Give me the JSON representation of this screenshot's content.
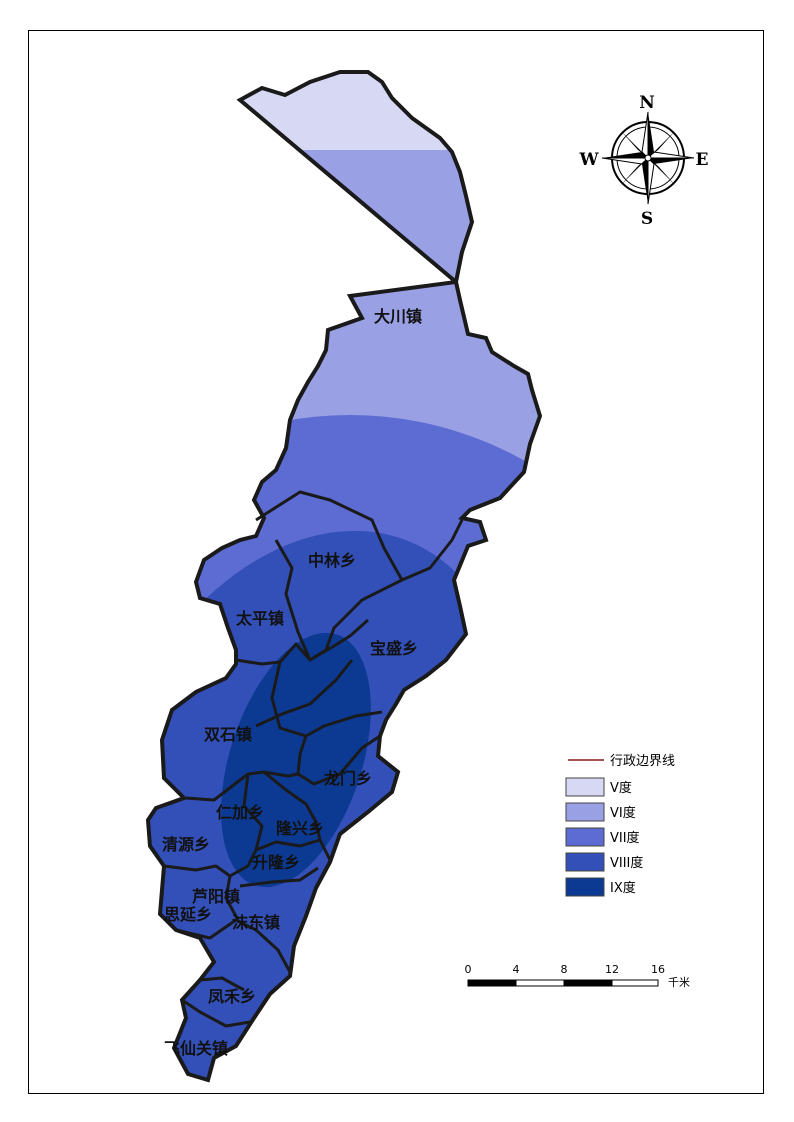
{
  "map": {
    "towns": [
      {
        "name": "大川镇"
      },
      {
        "name": "中林乡"
      },
      {
        "name": "太平镇"
      },
      {
        "name": "宝盛乡"
      },
      {
        "name": "双石镇"
      },
      {
        "name": "龙门乡"
      },
      {
        "name": "仁加乡"
      },
      {
        "name": "隆兴乡"
      },
      {
        "name": "清源乡"
      },
      {
        "name": "升隆乡"
      },
      {
        "name": "芦阳镇"
      },
      {
        "name": "思延乡"
      },
      {
        "name": "沫东镇"
      },
      {
        "name": "凤禾乡"
      },
      {
        "name": "飞仙关镇"
      }
    ]
  },
  "compass": {
    "north": "N",
    "south": "S",
    "east": "E",
    "west": "W"
  },
  "legend": {
    "boundary": {
      "label": "行政边界线",
      "color": "#8b1a1a"
    },
    "intensity": [
      {
        "label": "V度",
        "color": "#d6d8f4"
      },
      {
        "label": "VI度",
        "color": "#9aa0e4"
      },
      {
        "label": "VII度",
        "color": "#5c6cd2"
      },
      {
        "label": "VIII度",
        "color": "#3350b8"
      },
      {
        "label": "IX度",
        "color": "#0c3a92"
      }
    ]
  },
  "scale_bar": {
    "ticks": [
      "0",
      "4",
      "8",
      "12",
      "16"
    ],
    "unit": "千米"
  }
}
